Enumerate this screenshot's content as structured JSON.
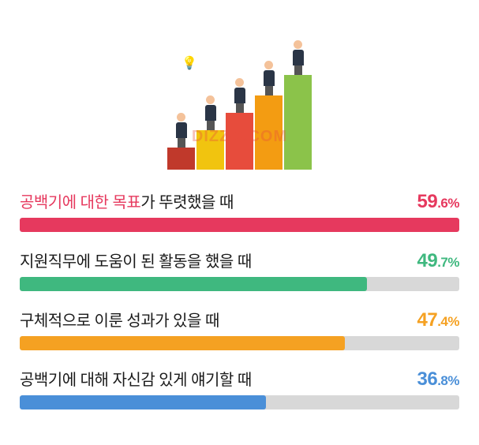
{
  "watermark": "DIZZO.COM",
  "hero": {
    "steps": [
      {
        "color": "#c0392b",
        "height": 28
      },
      {
        "color": "#f1c40f",
        "height": 50
      },
      {
        "color": "#e74c3c",
        "height": 72
      },
      {
        "color": "#f39c12",
        "height": 94
      },
      {
        "color": "#8bc34a",
        "height": 120
      }
    ]
  },
  "chart": {
    "track_color": "#d8d8d8",
    "rows": [
      {
        "label_highlight": "공백기에 대한 목표",
        "label_rest": "가 뚜렷했을 때",
        "highlight_color": "#e6395e",
        "value_int": "59",
        "value_dec": ".6",
        "pct": "%",
        "percent": 100,
        "bar_color": "#e6395e",
        "value_color": "#e6395e"
      },
      {
        "label_highlight": "지원직무에 도움이 된 활동",
        "label_rest": "을 했을 때",
        "highlight_color": "#1a1a1a",
        "value_int": "49",
        "value_dec": ".7",
        "pct": "%",
        "percent": 79,
        "bar_color": "#3fb87f",
        "value_color": "#3fb87f"
      },
      {
        "label_highlight": "구체적으로 이룬 성과",
        "label_rest": "가 있을 때",
        "highlight_color": "#1a1a1a",
        "value_int": "47",
        "value_dec": ".4",
        "pct": "%",
        "percent": 74,
        "bar_color": "#f5a122",
        "value_color": "#f5a122"
      },
      {
        "label_highlight": "공백기에 대해 자신감 있게 얘기",
        "label_rest": "할 때",
        "highlight_color": "#1a1a1a",
        "value_int": "36",
        "value_dec": ".8",
        "pct": "%",
        "percent": 56,
        "bar_color": "#4a8fd8",
        "value_color": "#4a8fd8"
      }
    ]
  }
}
